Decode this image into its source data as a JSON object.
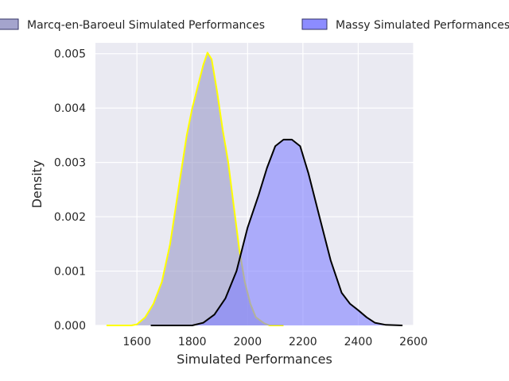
{
  "chart_data": {
    "type": "area",
    "xlabel": "Simulated Performances",
    "ylabel": "Density",
    "xlim": [
      1450,
      2600
    ],
    "ylim": [
      0,
      0.0052
    ],
    "x_ticks": [
      1600,
      1800,
      2000,
      2200,
      2400,
      2600
    ],
    "x_tick_labels": [
      "1600",
      "1800",
      "2000",
      "2200",
      "2400",
      "2600"
    ],
    "y_ticks": [
      0,
      0.001,
      0.002,
      0.003,
      0.004,
      0.005
    ],
    "y_tick_labels": [
      "0.000",
      "0.001",
      "0.002",
      "0.003",
      "0.004",
      "0.005"
    ],
    "grid": true,
    "legend_position": "top",
    "series": [
      {
        "name": "Marcq-en-Baroeul Simulated Performances",
        "fill_color": "#9a9ac8",
        "line_color": "#ffff00",
        "points": [
          [
            1490,
            0.0
          ],
          [
            1580,
            0.0
          ],
          [
            1600,
            2e-05
          ],
          [
            1630,
            0.00015
          ],
          [
            1660,
            0.0004
          ],
          [
            1690,
            0.0008
          ],
          [
            1720,
            0.0015
          ],
          [
            1750,
            0.0025
          ],
          [
            1780,
            0.0035
          ],
          [
            1800,
            0.004
          ],
          [
            1820,
            0.0044
          ],
          [
            1840,
            0.0048
          ],
          [
            1855,
            0.00502
          ],
          [
            1870,
            0.0049
          ],
          [
            1890,
            0.0043
          ],
          [
            1910,
            0.0036
          ],
          [
            1930,
            0.003
          ],
          [
            1950,
            0.0022
          ],
          [
            1970,
            0.0014
          ],
          [
            1990,
            0.0008
          ],
          [
            2010,
            0.0004
          ],
          [
            2030,
            0.00015
          ],
          [
            2060,
            4e-05
          ],
          [
            2080,
            0.0
          ],
          [
            2130,
            0.0
          ]
        ]
      },
      {
        "name": "Massy Simulated Performances",
        "fill_color": "#8080ff",
        "line_color": "#000000",
        "points": [
          [
            1650,
            0.0
          ],
          [
            1800,
            0.0
          ],
          [
            1840,
            5e-05
          ],
          [
            1880,
            0.0002
          ],
          [
            1920,
            0.0005
          ],
          [
            1960,
            0.001
          ],
          [
            2000,
            0.0018
          ],
          [
            2040,
            0.0024
          ],
          [
            2070,
            0.0029
          ],
          [
            2100,
            0.0033
          ],
          [
            2130,
            0.00342
          ],
          [
            2160,
            0.00342
          ],
          [
            2190,
            0.0033
          ],
          [
            2220,
            0.0028
          ],
          [
            2260,
            0.002
          ],
          [
            2300,
            0.0012
          ],
          [
            2340,
            0.0006
          ],
          [
            2370,
            0.0004
          ],
          [
            2400,
            0.00028
          ],
          [
            2430,
            0.00015
          ],
          [
            2460,
            5e-05
          ],
          [
            2500,
            1e-05
          ],
          [
            2560,
            0.0
          ]
        ]
      }
    ]
  }
}
